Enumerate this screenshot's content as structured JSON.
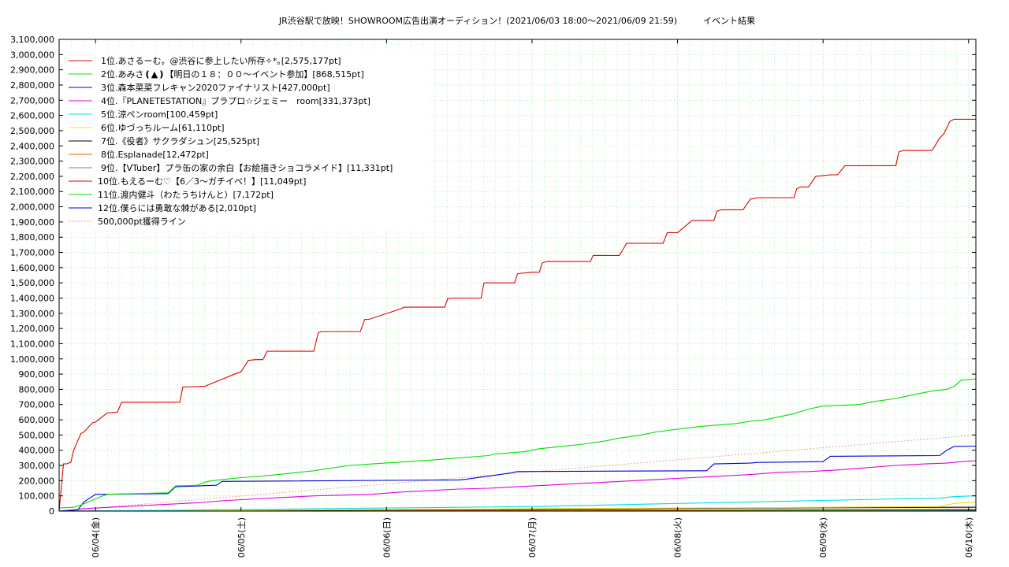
{
  "chart_data": {
    "type": "line",
    "title": "JR渋谷駅で放映！SHOWROOM広告出演オーディション！(2021/06/03 18:00～2021/06/09 21:59)　　　イベント結果",
    "ylim": [
      0,
      3100000
    ],
    "y_ticks": [
      "0",
      "100,000",
      "200,000",
      "300,000",
      "400,000",
      "500,000",
      "600,000",
      "700,000",
      "800,000",
      "900,000",
      "1,000,000",
      "1,100,000",
      "1,200,000",
      "1,300,000",
      "1,400,000",
      "1,500,000",
      "1,600,000",
      "1,700,000",
      "1,800,000",
      "1,900,000",
      "2,000,000",
      "2,100,000",
      "2,200,000",
      "2,300,000",
      "2,400,000",
      "2,500,000",
      "2,600,000",
      "2,700,000",
      "2,800,000",
      "2,900,000",
      "3,000,000",
      "3,100,000"
    ],
    "x_ticks": [
      "06/04(金)",
      "06/05(土)",
      "06/06(日)",
      "06/07(月)",
      "06/08(火)",
      "06/09(水)",
      "06/10(木)"
    ],
    "x_range": [
      -0.25,
      6.05
    ],
    "grid": true,
    "legend_position": "top-left",
    "series": [
      {
        "name": "1位.あさるーむ。@渋谷に参上したい所存✧*｡[2,575,177pt]",
        "color": "#e00000",
        "x": [
          -0.25,
          -0.22,
          -0.2,
          -0.17,
          -0.15,
          -0.1,
          -0.08,
          -0.02,
          0.0,
          0.08,
          0.15,
          0.18,
          0.58,
          0.6,
          0.73,
          0.75,
          0.98,
          1.0,
          1.05,
          1.1,
          1.15,
          1.18,
          1.5,
          1.53,
          1.55,
          1.58,
          1.82,
          1.85,
          1.88,
          2.1,
          2.12,
          2.15,
          2.4,
          2.42,
          2.45,
          2.48,
          2.65,
          2.67,
          2.7,
          2.88,
          2.9,
          3.0,
          3.05,
          3.07,
          3.1,
          3.1,
          3.4,
          3.42,
          3.47,
          3.5,
          3.6,
          3.65,
          3.68,
          3.9,
          3.93,
          3.95,
          4.0,
          4.1,
          4.15,
          4.25,
          4.27,
          4.3,
          4.45,
          4.5,
          4.55,
          4.58,
          4.8,
          4.82,
          4.85,
          4.9,
          4.95,
          5.05,
          5.1,
          5.15,
          5.5,
          5.52,
          5.55,
          5.75,
          5.8,
          5.83,
          5.87,
          5.9,
          6.0,
          6.05
        ],
        "y": [
          0,
          310000,
          310000,
          320000,
          400000,
          510000,
          520000,
          580000,
          585000,
          645000,
          650000,
          715000,
          715000,
          815000,
          820000,
          820000,
          910000,
          915000,
          990000,
          995000,
          995000,
          1050000,
          1050000,
          1170000,
          1180000,
          1180000,
          1180000,
          1260000,
          1260000,
          1330000,
          1340000,
          1340000,
          1340000,
          1395000,
          1400000,
          1400000,
          1400000,
          1500000,
          1500000,
          1500000,
          1560000,
          1570000,
          1570000,
          1630000,
          1640000,
          1640000,
          1640000,
          1680000,
          1680000,
          1680000,
          1680000,
          1760000,
          1760000,
          1760000,
          1830000,
          1830000,
          1830000,
          1910000,
          1910000,
          1910000,
          1970000,
          1980000,
          1980000,
          2050000,
          2060000,
          2060000,
          2060000,
          2120000,
          2130000,
          2130000,
          2200000,
          2210000,
          2210000,
          2270000,
          2270000,
          2360000,
          2370000,
          2370000,
          2450000,
          2480000,
          2560000,
          2575000,
          2575000,
          2575177
        ]
      },
      {
        "name": "2位.あみさ❪▲❫【明日の１８：００〜イベント参加】[868,515pt]",
        "color": "#00e000",
        "x": [
          -0.25,
          -0.15,
          -0.1,
          0.05,
          0.08,
          0.5,
          0.55,
          0.7,
          0.75,
          0.8,
          0.9,
          1.0,
          1.15,
          1.3,
          1.4,
          1.5,
          1.6,
          1.75,
          1.9,
          2.15,
          2.3,
          2.5,
          2.7,
          2.75,
          2.95,
          3.05,
          3.2,
          3.35,
          3.5,
          3.6,
          3.75,
          3.85,
          4.1,
          4.2,
          4.4,
          4.5,
          4.6,
          4.7,
          4.8,
          4.9,
          5.0,
          5.25,
          5.35,
          5.5,
          5.6,
          5.75,
          5.85,
          5.9,
          5.95,
          6.05
        ],
        "y": [
          20000,
          25000,
          40000,
          100000,
          110000,
          120000,
          165000,
          170000,
          190000,
          200000,
          210000,
          220000,
          230000,
          245000,
          255000,
          265000,
          280000,
          300000,
          310000,
          325000,
          335000,
          350000,
          365000,
          375000,
          390000,
          410000,
          425000,
          440000,
          460000,
          480000,
          500000,
          520000,
          550000,
          560000,
          575000,
          590000,
          600000,
          620000,
          640000,
          670000,
          690000,
          700000,
          720000,
          740000,
          760000,
          790000,
          800000,
          820000,
          860000,
          868515
        ]
      },
      {
        "name": "3位.森本菜菜フレキャン2020ファイナリスト[427,000pt]",
        "color": "#0000e0",
        "x": [
          -0.25,
          -0.12,
          -0.08,
          0.0,
          0.5,
          0.55,
          0.83,
          0.87,
          2.5,
          2.55,
          2.85,
          2.9,
          4.2,
          4.25,
          4.5,
          4.55,
          5.0,
          5.05,
          5.8,
          5.85,
          5.9,
          6.05
        ],
        "y": [
          0,
          10000,
          60000,
          110000,
          115000,
          160000,
          170000,
          195000,
          205000,
          210000,
          250000,
          260000,
          265000,
          310000,
          315000,
          320000,
          325000,
          360000,
          365000,
          400000,
          425000,
          427000
        ]
      },
      {
        "name": "4位.『PLANETESTATION』プラプロ☆ジェミー　room[331,373pt]",
        "color": "#e000e0",
        "x": [
          -0.25,
          -0.15,
          -0.1,
          0.2,
          0.5,
          0.7,
          0.9,
          1.1,
          1.3,
          1.5,
          1.7,
          1.9,
          2.1,
          2.3,
          2.5,
          2.7,
          2.9,
          3.1,
          3.3,
          3.5,
          3.7,
          3.9,
          4.1,
          4.3,
          4.5,
          4.7,
          4.9,
          5.1,
          5.3,
          5.5,
          5.7,
          5.85,
          5.95,
          6.05
        ],
        "y": [
          0,
          5000,
          15000,
          30000,
          45000,
          55000,
          70000,
          80000,
          90000,
          100000,
          105000,
          110000,
          125000,
          135000,
          145000,
          150000,
          160000,
          170000,
          180000,
          190000,
          200000,
          210000,
          220000,
          230000,
          240000,
          255000,
          260000,
          270000,
          285000,
          300000,
          310000,
          315000,
          325000,
          331373
        ]
      },
      {
        "name": "5位.涼ペンroom[100,459pt]",
        "color": "#00e0e0",
        "x": [
          -0.25,
          0.5,
          1.0,
          1.5,
          2.0,
          2.5,
          3.0,
          3.5,
          4.0,
          4.5,
          5.0,
          5.5,
          5.8,
          5.9,
          6.05
        ],
        "y": [
          0,
          5000,
          10000,
          15000,
          20000,
          25000,
          30000,
          40000,
          50000,
          60000,
          70000,
          80000,
          85000,
          95000,
          100459
        ]
      },
      {
        "name": "6位.ゆづっちルーム[61,110pt]",
        "color": "#f0e000",
        "x": [
          -0.25,
          1.0,
          2.0,
          3.0,
          4.0,
          5.0,
          5.8,
          5.9,
          6.05
        ],
        "y": [
          0,
          5000,
          10000,
          15000,
          20000,
          25000,
          30000,
          50000,
          61110
        ]
      },
      {
        "name": "7位.《役者》サクラダシュン[25,525pt]",
        "color": "#000000",
        "x": [
          -0.25,
          1.5,
          3.0,
          4.5,
          6.05
        ],
        "y": [
          0,
          5000,
          12000,
          20000,
          25525
        ]
      },
      {
        "name": "8位.Esplanade[12,472pt]",
        "color": "#e06000",
        "x": [
          -0.25,
          2.0,
          4.0,
          6.05
        ],
        "y": [
          0,
          4000,
          8000,
          12472
        ]
      },
      {
        "name": "9位.【VTuber】プラ缶の家の余白【お絵描きショコラメイド】[11,331pt]",
        "color": "#808080",
        "x": [
          -0.25,
          2.0,
          4.0,
          6.05
        ],
        "y": [
          0,
          3000,
          7000,
          11331
        ]
      },
      {
        "name": "10位.もえるーむ♡【6／3〜ガチイベ！】[11,049pt]",
        "color": "#e00000",
        "x": [
          -0.25,
          2.0,
          4.0,
          6.05
        ],
        "y": [
          0,
          3000,
          6000,
          11049
        ]
      },
      {
        "name": "11位.渡内健斗（わたうちけんと）[7,172pt]",
        "color": "#00e000",
        "x": [
          -0.25,
          3.0,
          6.05
        ],
        "y": [
          0,
          3000,
          7172
        ]
      },
      {
        "name": "12位.僕らには勇敢な棘がある[2,010pt]",
        "color": "#0000e0",
        "x": [
          -0.25,
          3.0,
          6.05
        ],
        "y": [
          0,
          1000,
          2010
        ]
      },
      {
        "name": "500,000pt獲得ライン",
        "color": "#e08080",
        "dashed": true,
        "x": [
          -0.25,
          6.05
        ],
        "y": [
          0,
          500000
        ]
      }
    ]
  }
}
